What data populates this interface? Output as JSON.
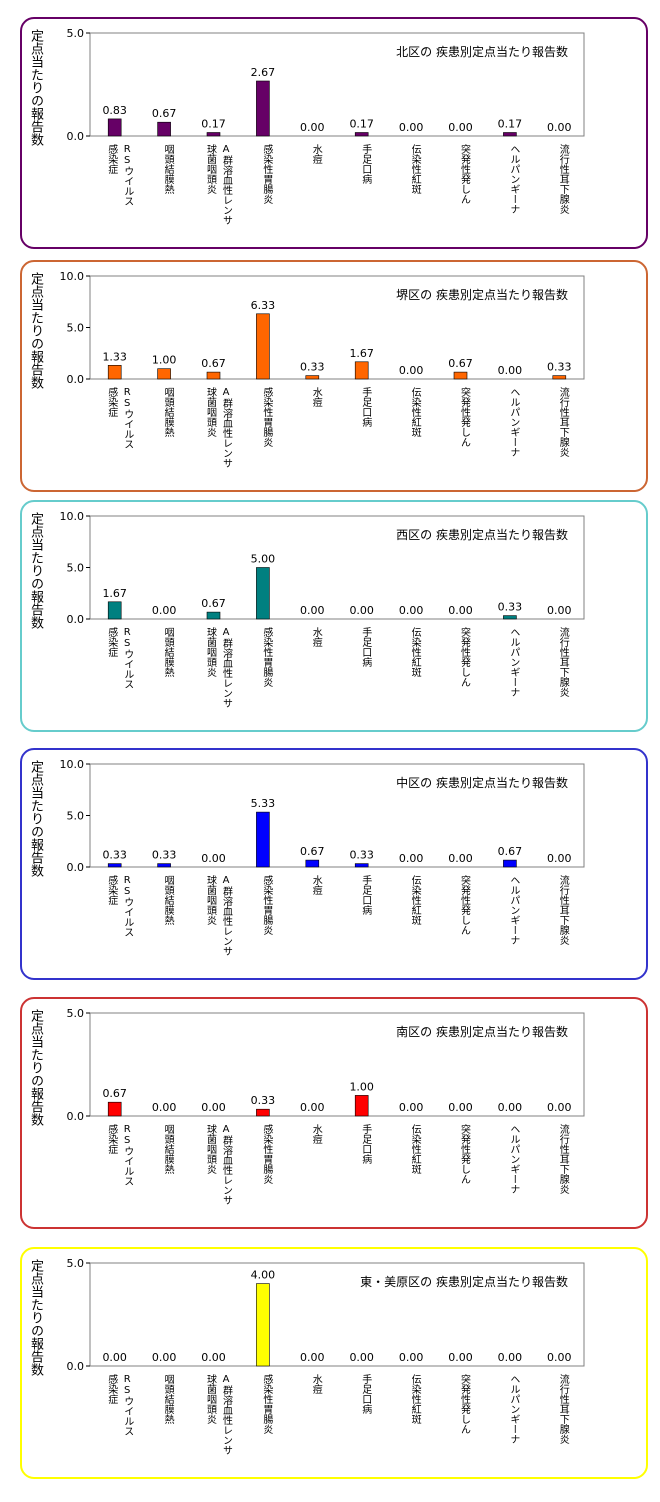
{
  "chart_data": [
    {
      "type": "bar",
      "title": "北区の 疾患別定点当たり報告数",
      "ylabel": "定点当たりの報告数",
      "ylim": [
        0,
        5
      ],
      "yticks": [
        "0.0",
        "5.0"
      ],
      "bar_color": "#660066",
      "border_color": "#660066",
      "categories": [
        [
          "RSウイルス",
          "感染症"
        ],
        [
          "咽頭結膜熱"
        ],
        [
          "A群溶血性レンサ",
          "球菌咽頭炎"
        ],
        [
          "感染性胃腸炎"
        ],
        [
          "水痘"
        ],
        [
          "手足口病"
        ],
        [
          "伝染性紅斑"
        ],
        [
          "突発性発しん"
        ],
        [
          "ヘルパンギーナ"
        ],
        [
          "流行性耳下腺炎"
        ]
      ],
      "values": [
        0.83,
        0.67,
        0.17,
        2.67,
        0.0,
        0.17,
        0.0,
        0.0,
        0.17,
        0.0
      ],
      "value_labels": [
        "0.83",
        "0.67",
        "0.17",
        "2.67",
        "0.00",
        "0.17",
        "0.00",
        "0.00",
        "0.17",
        "0.00"
      ]
    },
    {
      "type": "bar",
      "title": "堺区の 疾患別定点当たり報告数",
      "ylabel": "定点当たりの報告数",
      "ylim": [
        0,
        10
      ],
      "yticks": [
        "0.0",
        "5.0",
        "10.0"
      ],
      "bar_color": "#ff6600",
      "border_color": "#cc6633",
      "categories": [
        [
          "RSウイルス",
          "感染症"
        ],
        [
          "咽頭結膜熱"
        ],
        [
          "A群溶血性レンサ",
          "球菌咽頭炎"
        ],
        [
          "感染性胃腸炎"
        ],
        [
          "水痘"
        ],
        [
          "手足口病"
        ],
        [
          "伝染性紅斑"
        ],
        [
          "突発性発しん"
        ],
        [
          "ヘルパンギーナ"
        ],
        [
          "流行性耳下腺炎"
        ]
      ],
      "values": [
        1.33,
        1.0,
        0.67,
        6.33,
        0.33,
        1.67,
        0.0,
        0.67,
        0.0,
        0.33
      ],
      "value_labels": [
        "1.33",
        "1.00",
        "0.67",
        "6.33",
        "0.33",
        "1.67",
        "0.00",
        "0.67",
        "0.00",
        "0.33"
      ]
    },
    {
      "type": "bar",
      "title": "西区の 疾患別定点当たり報告数",
      "ylabel": "定点当たりの報告数",
      "ylim": [
        0,
        10
      ],
      "yticks": [
        "0.0",
        "5.0",
        "10.0"
      ],
      "bar_color": "#008080",
      "border_color": "#66cccc",
      "categories": [
        [
          "RSウイルス",
          "感染症"
        ],
        [
          "咽頭結膜熱"
        ],
        [
          "A群溶血性レンサ",
          "球菌咽頭炎"
        ],
        [
          "感染性胃腸炎"
        ],
        [
          "水痘"
        ],
        [
          "手足口病"
        ],
        [
          "伝染性紅斑"
        ],
        [
          "突発性発しん"
        ],
        [
          "ヘルパンギーナ"
        ],
        [
          "流行性耳下腺炎"
        ]
      ],
      "values": [
        1.67,
        0.0,
        0.67,
        5.0,
        0.0,
        0.0,
        0.0,
        0.0,
        0.33,
        0.0
      ],
      "value_labels": [
        "1.67",
        "0.00",
        "0.67",
        "5.00",
        "0.00",
        "0.00",
        "0.00",
        "0.00",
        "0.33",
        "0.00"
      ]
    },
    {
      "type": "bar",
      "title": "中区の 疾患別定点当たり報告数",
      "ylabel": "定点当たりの報告数",
      "ylim": [
        0,
        10
      ],
      "yticks": [
        "0.0",
        "5.0",
        "10.0"
      ],
      "bar_color": "#0000ff",
      "border_color": "#3333cc",
      "categories": [
        [
          "RSウイルス",
          "感染症"
        ],
        [
          "咽頭結膜熱"
        ],
        [
          "A群溶血性レンサ",
          "球菌咽頭炎"
        ],
        [
          "感染性胃腸炎"
        ],
        [
          "水痘"
        ],
        [
          "手足口病"
        ],
        [
          "伝染性紅斑"
        ],
        [
          "突発性発しん"
        ],
        [
          "ヘルパンギーナ"
        ],
        [
          "流行性耳下腺炎"
        ]
      ],
      "values": [
        0.33,
        0.33,
        0.0,
        5.33,
        0.67,
        0.33,
        0.0,
        0.0,
        0.67,
        0.0
      ],
      "value_labels": [
        "0.33",
        "0.33",
        "0.00",
        "5.33",
        "0.67",
        "0.33",
        "0.00",
        "0.00",
        "0.67",
        "0.00"
      ]
    },
    {
      "type": "bar",
      "title": "南区の 疾患別定点当たり報告数",
      "ylabel": "定点当たりの報告数",
      "ylim": [
        0,
        5
      ],
      "yticks": [
        "0.0",
        "5.0"
      ],
      "bar_color": "#ff0000",
      "border_color": "#cc3333",
      "categories": [
        [
          "RSウイルス",
          "感染症"
        ],
        [
          "咽頭結膜熱"
        ],
        [
          "A群溶血性レンサ",
          "球菌咽頭炎"
        ],
        [
          "感染性胃腸炎"
        ],
        [
          "水痘"
        ],
        [
          "手足口病"
        ],
        [
          "伝染性紅斑"
        ],
        [
          "突発性発しん"
        ],
        [
          "ヘルパンギーナ"
        ],
        [
          "流行性耳下腺炎"
        ]
      ],
      "values": [
        0.67,
        0.0,
        0.0,
        0.33,
        0.0,
        1.0,
        0.0,
        0.0,
        0.0,
        0.0
      ],
      "value_labels": [
        "0.67",
        "0.00",
        "0.00",
        "0.33",
        "0.00",
        "1.00",
        "0.00",
        "0.00",
        "0.00",
        "0.00"
      ]
    },
    {
      "type": "bar",
      "title": "東・美原区の 疾患別定点当たり報告数",
      "ylabel": "定点当たりの報告数",
      "ylim": [
        0,
        5
      ],
      "yticks": [
        "0.0",
        "5.0"
      ],
      "bar_color": "#ffff00",
      "border_color": "#ffff00",
      "categories": [
        [
          "RSウイルス",
          "感染症"
        ],
        [
          "咽頭結膜熱"
        ],
        [
          "A群溶血性レンサ",
          "球菌咽頭炎"
        ],
        [
          "感染性胃腸炎"
        ],
        [
          "水痘"
        ],
        [
          "手足口病"
        ],
        [
          "伝染性紅斑"
        ],
        [
          "突発性発しん"
        ],
        [
          "ヘルパンギーナ"
        ],
        [
          "流行性耳下腺炎"
        ]
      ],
      "values": [
        0.0,
        0.0,
        0.0,
        4.0,
        0.0,
        0.0,
        0.0,
        0.0,
        0.0,
        0.0
      ],
      "value_labels": [
        "0.00",
        "0.00",
        "0.00",
        "4.00",
        "0.00",
        "0.00",
        "0.00",
        "0.00",
        "0.00",
        "0.00"
      ]
    }
  ]
}
